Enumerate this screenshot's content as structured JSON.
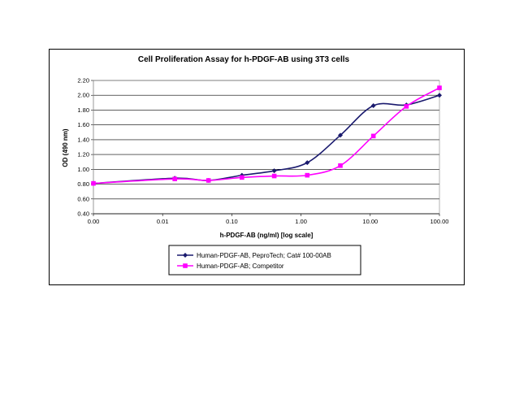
{
  "chart_data": {
    "type": "line",
    "title": "Cell Proliferation Assay for h-PDGF-AB using 3T3 cells",
    "xlabel": "h-PDGF-AB (ng/ml) [log scale]",
    "ylabel": "OD (490 nm)",
    "x_scale": "log",
    "xlim": [
      0.001,
      100
    ],
    "ylim": [
      0.4,
      2.2
    ],
    "x_ticks": [
      0.001,
      0.01,
      0.1,
      1,
      10,
      100
    ],
    "x_tick_labels": [
      "0.00",
      "0.01",
      "0.10",
      "1.00",
      "10.00",
      "100.00"
    ],
    "y_ticks": [
      0.4,
      0.6,
      0.8,
      1.0,
      1.2,
      1.4,
      1.6,
      1.8,
      2.0,
      2.2
    ],
    "y_tick_labels": [
      "0.40",
      "0.60",
      "0.80",
      "1.00",
      "1.20",
      "1.40",
      "1.60",
      "1.80",
      "2.00",
      "2.20"
    ],
    "grid": "horizontal",
    "legend_position": "bottom",
    "series": [
      {
        "name": "Human-PDGF-AB, PeproTech; Cat# 100-00AB",
        "color": "#1a1a6e",
        "marker": "diamond",
        "x": [
          0.001,
          0.015,
          0.046,
          0.14,
          0.41,
          1.23,
          3.7,
          11.1,
          33.3,
          100
        ],
        "y": [
          0.81,
          0.88,
          0.85,
          0.92,
          0.98,
          1.09,
          1.46,
          1.86,
          1.87,
          2.0
        ]
      },
      {
        "name": "Human-PDGF-AB; Competitor",
        "color": "#ff00ff",
        "marker": "square",
        "x": [
          0.001,
          0.015,
          0.046,
          0.14,
          0.41,
          1.23,
          3.7,
          11.1,
          33.3,
          100
        ],
        "y": [
          0.81,
          0.87,
          0.85,
          0.89,
          0.91,
          0.92,
          1.05,
          1.45,
          1.85,
          2.1
        ]
      }
    ]
  }
}
